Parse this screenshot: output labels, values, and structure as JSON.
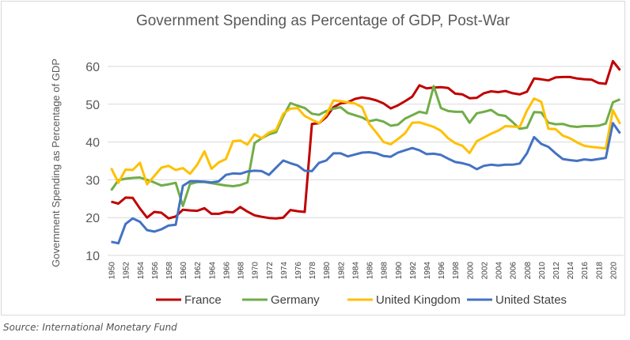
{
  "source": "Source: International Monetary Fund",
  "chart_data": {
    "type": "line",
    "title": "Government Spending as Percentage of GDP, Post-War",
    "xlabel": "",
    "ylabel": "Government Spending as Percentage of GDP",
    "ylim": [
      10,
      60
    ],
    "yticks": [
      10,
      20,
      30,
      40,
      50,
      60
    ],
    "grid": "horizontal",
    "legend": "bottom",
    "x": [
      1950,
      1951,
      1952,
      1953,
      1954,
      1955,
      1956,
      1957,
      1958,
      1959,
      1960,
      1961,
      1962,
      1963,
      1964,
      1965,
      1966,
      1967,
      1968,
      1969,
      1970,
      1971,
      1972,
      1973,
      1974,
      1975,
      1976,
      1977,
      1978,
      1979,
      1980,
      1981,
      1982,
      1983,
      1984,
      1985,
      1986,
      1987,
      1988,
      1989,
      1990,
      1991,
      1992,
      1993,
      1994,
      1995,
      1996,
      1997,
      1998,
      1999,
      2000,
      2001,
      2002,
      2003,
      2004,
      2005,
      2006,
      2007,
      2008,
      2009,
      2010,
      2011,
      2012,
      2013,
      2014,
      2015,
      2016,
      2017,
      2018,
      2019,
      2020,
      2021
    ],
    "xtick_labels": [
      "1950",
      "1952",
      "1954",
      "1956",
      "1958",
      "1960",
      "1962",
      "1964",
      "1966",
      "1968",
      "1970",
      "1972",
      "1974",
      "1976",
      "1978",
      "1980",
      "1982",
      "1984",
      "1986",
      "1988",
      "1990",
      "1992",
      "1994",
      "1996",
      "1998",
      "2000",
      "2002",
      "2004",
      "2006",
      "2008",
      "2010",
      "2012",
      "2014",
      "2016",
      "2018",
      "2020"
    ],
    "series": [
      {
        "name": "France",
        "color": "#c00000",
        "values": [
          24.2,
          23.7,
          25.3,
          25.2,
          22.4,
          20.0,
          21.5,
          21.3,
          19.8,
          20.3,
          22.1,
          21.9,
          21.8,
          22.5,
          21.0,
          21.0,
          21.5,
          21.4,
          22.8,
          21.6,
          20.6,
          20.2,
          19.9,
          19.8,
          20.0,
          22.0,
          21.7,
          21.5,
          44.8,
          45.0,
          46.6,
          49.2,
          50.2,
          50.5,
          51.4,
          51.8,
          51.5,
          51.0,
          50.2,
          48.9,
          49.7,
          50.8,
          52.0,
          55.0,
          54.2,
          54.4,
          54.5,
          54.3,
          52.8,
          52.6,
          51.6,
          51.7,
          52.9,
          53.4,
          53.2,
          53.5,
          52.9,
          52.6,
          53.3,
          56.8,
          56.6,
          56.3,
          57.1,
          57.2,
          57.2,
          56.8,
          56.6,
          56.5,
          55.6,
          55.4,
          61.4,
          59.0
        ]
      },
      {
        "name": "Germany",
        "color": "#70ad47",
        "values": [
          27.2,
          29.9,
          30.3,
          30.5,
          30.6,
          30.0,
          29.3,
          28.5,
          28.8,
          29.2,
          23.1,
          28.9,
          29.4,
          29.4,
          29.1,
          28.8,
          28.5,
          28.3,
          28.6,
          29.3,
          39.7,
          41.0,
          42.0,
          42.6,
          46.8,
          50.3,
          49.6,
          49.0,
          47.5,
          47.2,
          48.2,
          48.8,
          49.2,
          47.7,
          47.1,
          46.5,
          45.5,
          45.9,
          45.4,
          44.3,
          44.6,
          46.2,
          47.1,
          48.0,
          47.6,
          54.8,
          49.0,
          48.2,
          48.0,
          48.0,
          45.1,
          47.6,
          48.0,
          48.5,
          47.2,
          46.9,
          45.3,
          43.5,
          43.8,
          47.9,
          47.8,
          45.1,
          44.7,
          44.8,
          44.2,
          44.0,
          44.2,
          44.2,
          44.3,
          44.9,
          50.5,
          51.3
        ]
      },
      {
        "name": "United Kingdom",
        "color": "#ffc000",
        "values": [
          33.1,
          29.2,
          32.7,
          32.6,
          34.5,
          28.8,
          31.0,
          33.2,
          33.7,
          32.6,
          33.1,
          31.6,
          34.0,
          37.5,
          32.9,
          34.6,
          35.5,
          40.2,
          40.4,
          39.3,
          42.0,
          41.0,
          42.5,
          43.2,
          47.5,
          48.8,
          49.0,
          46.9,
          45.9,
          45.0,
          47.2,
          51.0,
          50.8,
          50.5,
          50.2,
          49.2,
          44.8,
          42.5,
          40.0,
          39.4,
          40.8,
          42.3,
          45.1,
          45.2,
          44.6,
          44.0,
          43.0,
          41.0,
          39.7,
          39.0,
          37.1,
          40.2,
          41.2,
          42.2,
          43.0,
          44.2,
          44.1,
          44.0,
          48.3,
          51.5,
          50.6,
          43.5,
          43.4,
          41.7,
          41.0,
          39.9,
          39.0,
          38.7,
          38.5,
          38.3,
          48.4,
          44.8
        ]
      },
      {
        "name": "United States",
        "color": "#4472c4",
        "values": [
          13.6,
          13.2,
          18.3,
          19.8,
          18.9,
          16.7,
          16.3,
          16.9,
          17.9,
          18.1,
          28.4,
          29.6,
          29.6,
          29.5,
          29.3,
          29.6,
          31.3,
          31.7,
          31.6,
          32.2,
          32.4,
          32.3,
          31.3,
          33.2,
          35.1,
          34.4,
          33.8,
          32.4,
          32.3,
          34.5,
          35.1,
          37.0,
          37.0,
          36.2,
          36.7,
          37.2,
          37.3,
          37.0,
          36.3,
          36.1,
          37.2,
          37.8,
          38.4,
          37.8,
          36.8,
          36.9,
          36.6,
          35.6,
          34.7,
          34.4,
          33.9,
          32.8,
          33.7,
          34.0,
          33.8,
          34.0,
          34.0,
          34.3,
          37.0,
          41.3,
          39.5,
          38.7,
          37.0,
          35.5,
          35.2,
          35.0,
          35.4,
          35.2,
          35.5,
          35.8,
          45.0,
          42.3
        ]
      }
    ]
  }
}
